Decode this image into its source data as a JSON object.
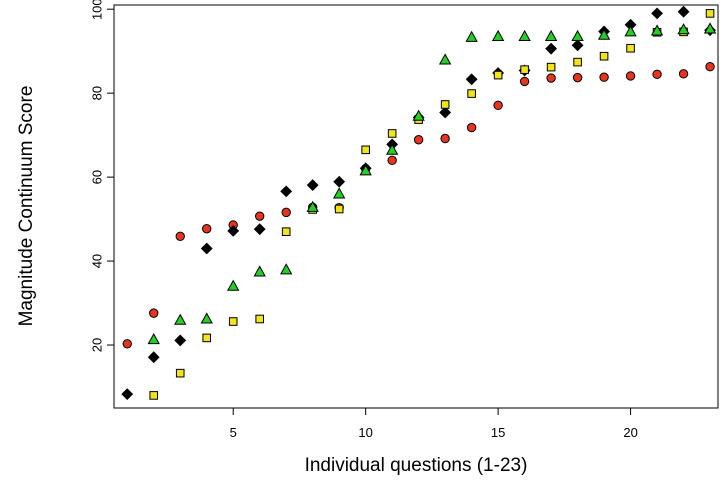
{
  "chart_data": {
    "type": "scatter",
    "xlabel": "Individual questions (1-23)",
    "ylabel": "Magnitude Continuum Score",
    "xlim": [
      0.5,
      23.3
    ],
    "ylim": [
      5,
      101
    ],
    "xticks": [
      5,
      10,
      15,
      20
    ],
    "yticks": [
      20,
      40,
      60,
      80,
      100
    ],
    "grid": false,
    "legend": "none",
    "series": [
      {
        "marker": "circle",
        "color": "#e8341c",
        "x": [
          1,
          2,
          3,
          4,
          5,
          6,
          7,
          8,
          9,
          10,
          11,
          12,
          13,
          14,
          15,
          16,
          17,
          18,
          19,
          20,
          21,
          22,
          23
        ],
        "y": [
          20.3,
          27.6,
          45.9,
          47.7,
          48.6,
          50.7,
          51.6,
          52.8,
          52.7,
          62.0,
          64.0,
          68.9,
          69.2,
          71.8,
          77.1,
          82.8,
          83.6,
          83.7,
          83.8,
          84.1,
          84.5,
          84.6,
          86.3
        ]
      },
      {
        "marker": "diamond",
        "color": "#000000",
        "x": [
          1,
          2,
          3,
          4,
          5,
          6,
          7,
          8,
          9,
          10,
          11,
          12,
          13,
          14,
          15,
          16,
          17,
          18,
          19,
          20,
          21,
          22,
          23
        ],
        "y": [
          8.3,
          17.1,
          21.1,
          43.0,
          47.2,
          47.6,
          56.6,
          58.1,
          58.9,
          62.1,
          67.8,
          74.2,
          75.4,
          83.3,
          84.8,
          85.4,
          90.6,
          91.4,
          94.7,
          96.3,
          99.0,
          99.4,
          95.0
        ]
      },
      {
        "marker": "square",
        "color": "#f2e41a",
        "x": [
          2,
          3,
          4,
          5,
          6,
          7,
          8,
          9,
          10,
          11,
          12,
          13,
          14,
          15,
          16,
          17,
          18,
          19,
          20,
          21,
          22,
          23
        ],
        "y": [
          8.0,
          13.3,
          21.7,
          25.6,
          26.2,
          47.0,
          52.3,
          52.4,
          66.5,
          70.4,
          73.7,
          77.3,
          79.9,
          84.3,
          85.6,
          86.2,
          87.4,
          88.8,
          90.7,
          94.5,
          94.6,
          99.0
        ]
      },
      {
        "marker": "triangle",
        "color": "#22d022",
        "x": [
          2,
          3,
          4,
          5,
          6,
          7,
          8,
          9,
          10,
          11,
          12,
          13,
          14,
          15,
          16,
          17,
          18,
          19,
          20,
          21,
          22,
          23
        ],
        "y": [
          21.3,
          25.9,
          26.2,
          34.0,
          37.4,
          37.9,
          52.8,
          56.0,
          61.5,
          66.4,
          74.5,
          87.9,
          93.3,
          93.5,
          93.5,
          93.5,
          93.5,
          93.8,
          94.6,
          94.8,
          95.1,
          95.3
        ]
      }
    ]
  }
}
